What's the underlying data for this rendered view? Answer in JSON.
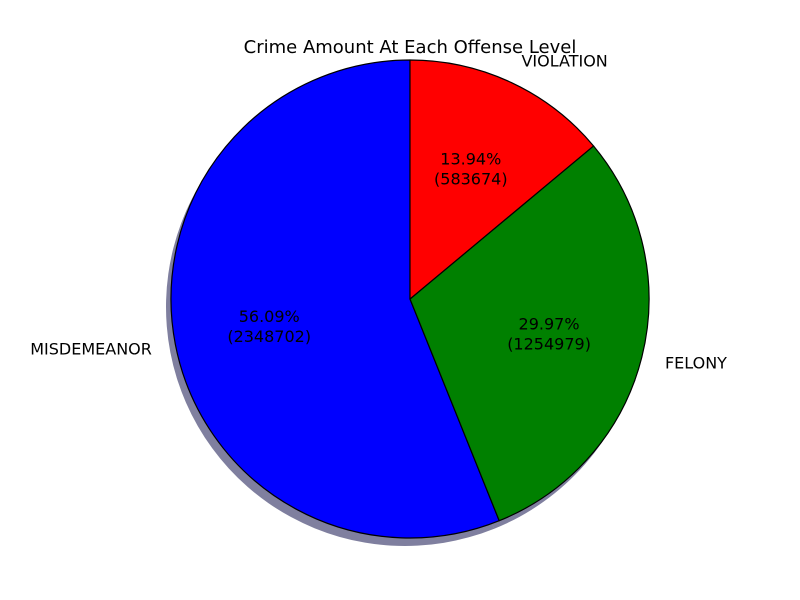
{
  "chart_data": {
    "type": "pie",
    "title": "Crime Amount At Each Offense Level",
    "start_angle_deg": 90,
    "direction": "counterclockwise",
    "shadow": true,
    "edge_color": "#000000",
    "slices": [
      {
        "label": "MISDEMEANOR",
        "value": 2348702,
        "percent_text": "56.09%",
        "value_text": "(2348702)",
        "color": "#0000ff"
      },
      {
        "label": "FELONY",
        "value": 1254979,
        "percent_text": "29.97%",
        "value_text": "(1254979)",
        "color": "#008000"
      },
      {
        "label": "VIOLATION",
        "value": 583674,
        "percent_text": "13.94%",
        "value_text": "(583674)",
        "color": "#ff0000"
      }
    ]
  }
}
